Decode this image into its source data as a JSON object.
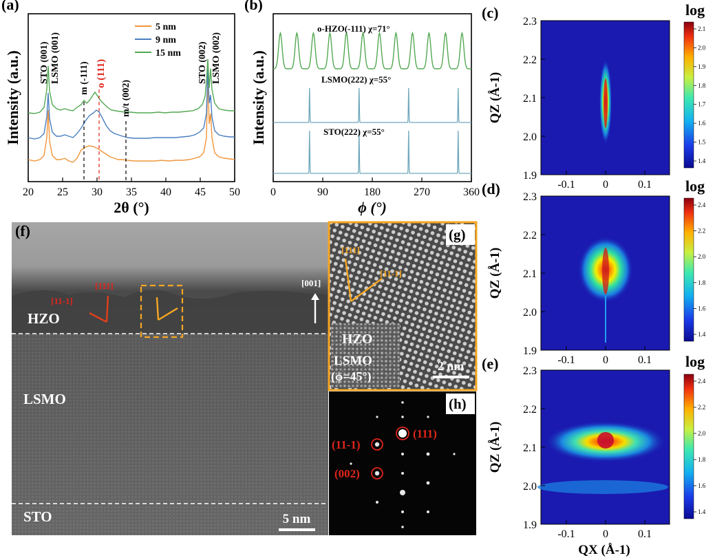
{
  "panels": {
    "a": {
      "label": "(a)",
      "xlabel": "2θ (°)",
      "ylabel": "Intensity (a.u.)",
      "xticks": [
        "20",
        "25",
        "30",
        "35",
        "40",
        "45",
        "50"
      ],
      "legend": [
        {
          "name": "5 nm",
          "color": "#f0953a"
        },
        {
          "name": "9 nm",
          "color": "#4a7fc0"
        },
        {
          "name": "15 nm",
          "color": "#52a852"
        }
      ],
      "annotations": {
        "sto001": "STO (001)",
        "lsmo001": "LSMO (001)",
        "m111": "m (-111)",
        "o111": "o (111)",
        "mt002": "m/t (002)",
        "sto002": "STO (002)",
        "lsmo002": "LSMO (002)"
      }
    },
    "b": {
      "label": "(b)",
      "xlabel": "ϕ (°)",
      "ylabel": "Intensity (a.u.)",
      "xticks": [
        "0",
        "90",
        "180",
        "270",
        "360"
      ],
      "traces": {
        "hzo": "o-HZO(-111)   χ=71°",
        "lsmo": "LSMO(222)   χ=55°",
        "sto": "STO(222)   χ=55°"
      }
    },
    "rsm": {
      "ylabel": "QZ (Å-1)",
      "xlabel": "QX (Å-1)",
      "colorbar_title": "log",
      "yticks": [
        "1.9",
        "2.0",
        "2.1",
        "2.2",
        "2.3"
      ],
      "xticks": [
        "-0.1",
        "0",
        "0.1"
      ],
      "c": {
        "label": "(c)",
        "cbar_ticks": [
          "1.4",
          "1.5",
          "1.6",
          "1.7",
          "1.8",
          "1.9",
          "2.0",
          "2.1"
        ]
      },
      "d": {
        "label": "(d)",
        "cbar_ticks": [
          "1.4",
          "1.6",
          "1.8",
          "2.0",
          "2.2",
          "2.4"
        ]
      },
      "e": {
        "label": "(e)",
        "cbar_ticks": [
          "1.4",
          "1.6",
          "1.8",
          "2.0",
          "2.2",
          "2.4"
        ]
      }
    },
    "f": {
      "label": "(f)",
      "layers": {
        "hzo": "HZO",
        "lsmo": "LSMO",
        "sto": "STO"
      },
      "directions": {
        "d111": "[111]",
        "d11m1": "[11-1]",
        "d001": "[001]"
      },
      "scalebar": "5 nm"
    },
    "g": {
      "label": "(g)",
      "directions": {
        "d111": "[111]",
        "d11m1": "[11-1]"
      },
      "layer_hzo": "HZO",
      "layer_lsmo": "LSMO",
      "phi": "(ϕ=45°)",
      "scalebar": "2 nm"
    },
    "h": {
      "label": "(h)",
      "spots": {
        "s111": "(111)",
        "s11m1": "(11-1)",
        "s002": "(002)"
      }
    }
  },
  "colors": {
    "orange": "#f0953a",
    "blue": "#4a7fc0",
    "green": "#52a852",
    "phi_trace": "#6fa8bb",
    "red_label": "#e0251b",
    "gold": "#f5a623",
    "rsm_background": "#1a1ab0"
  }
}
